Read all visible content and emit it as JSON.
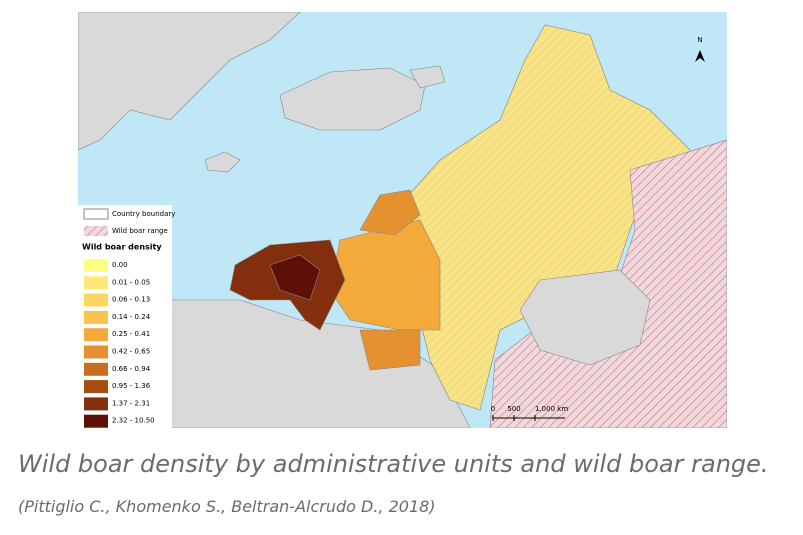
{
  "legend": {
    "boundary": "Country boundary",
    "range": "Wild boar range",
    "title": "Wild boar density",
    "classes": [
      {
        "label": "0.00",
        "color": "#ffff85"
      },
      {
        "label": "0.01 - 0.05",
        "color": "#fde97a"
      },
      {
        "label": "0.06 - 0.13",
        "color": "#fcd662"
      },
      {
        "label": "0.14 - 0.24",
        "color": "#f8c24d"
      },
      {
        "label": "0.25 - 0.41",
        "color": "#f3aa3b"
      },
      {
        "label": "0.42 - 0.65",
        "color": "#e59130"
      },
      {
        "label": "0.66 - 0.94",
        "color": "#c96e20"
      },
      {
        "label": "0.95 - 1.36",
        "color": "#a64d13"
      },
      {
        "label": "1.37 - 2.31",
        "color": "#832e0c"
      },
      {
        "label": "2.32 - 10.50",
        "color": "#5e1006"
      }
    ]
  },
  "scale_bar": {
    "labels": [
      "0",
      "500",
      "1,000 km"
    ]
  },
  "north": "N",
  "caption": "Wild boar density by administrative units and wild boar range.",
  "citation": "(Pittiglio C., Khomenko S., Beltran-Alcrudo D., 2018)"
}
